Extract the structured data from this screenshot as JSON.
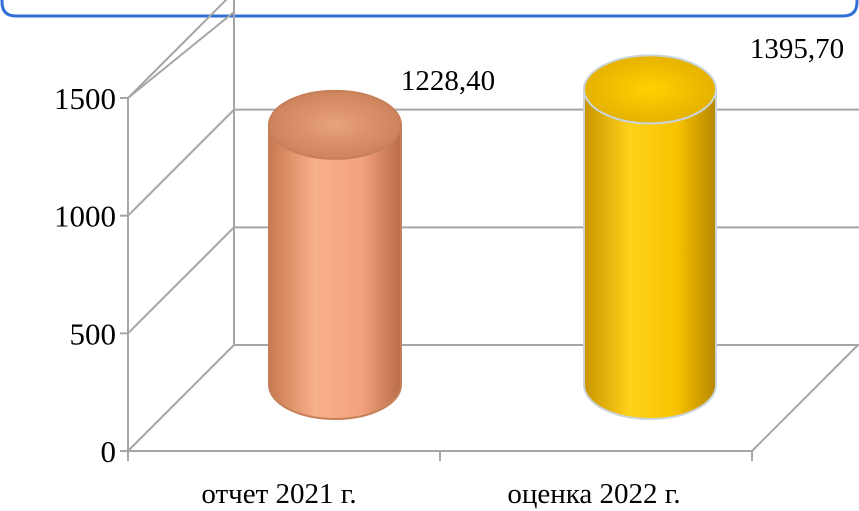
{
  "chart_data": {
    "type": "bar",
    "style": "3d-cylinder",
    "categories": [
      "отчет 2021 г.",
      "оценка 2022 г."
    ],
    "values": [
      1228.4,
      1395.7
    ],
    "data_labels": [
      "1228,40",
      "1395,70"
    ],
    "ylim": [
      0,
      1500
    ],
    "yticks": [
      0,
      500,
      1000,
      1500
    ],
    "ytick_labels": [
      "0",
      "500",
      "1000",
      "1500"
    ],
    "grid": true,
    "legend": "none",
    "colors": {
      "series_1": "#f3a37d",
      "series_2": "#f7c300",
      "border": "#2f6fd6",
      "grid": "#a6a6a6"
    }
  }
}
